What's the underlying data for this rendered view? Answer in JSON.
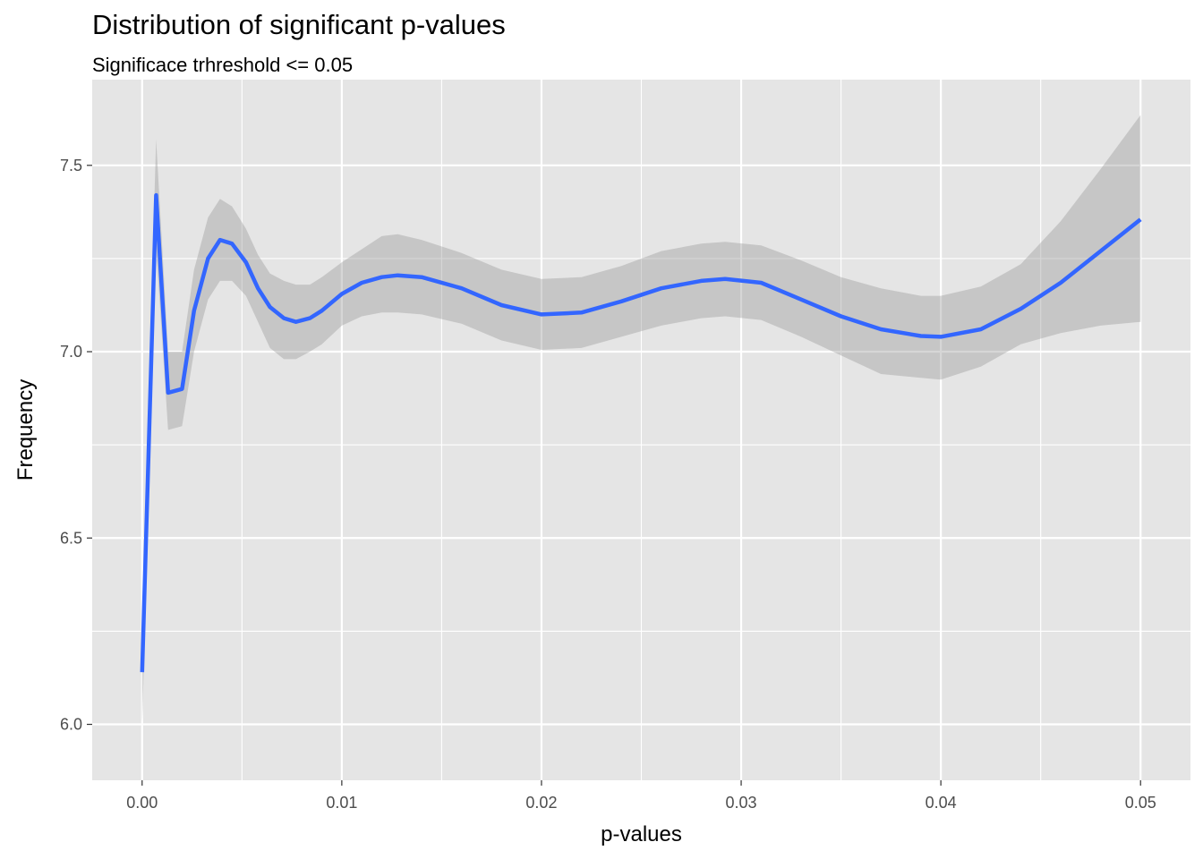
{
  "chart_data": {
    "type": "line",
    "title": "Distribution of significant p-values",
    "subtitle": "Significace trhreshold <= 0.05",
    "xlabel": "p-values",
    "ylabel": "Frequency",
    "xlim": [
      -0.0025,
      0.0525
    ],
    "ylim": [
      5.85,
      7.73
    ],
    "x_ticks": [
      0.0,
      0.01,
      0.02,
      0.03,
      0.04,
      0.05
    ],
    "x_tick_labels": [
      "0.00",
      "0.01",
      "0.02",
      "0.03",
      "0.04",
      "0.05"
    ],
    "y_ticks": [
      6.0,
      6.5,
      7.0,
      7.5
    ],
    "y_tick_labels": [
      "6.0",
      "6.5",
      "7.0",
      "7.5"
    ],
    "grid": true,
    "legend": "none",
    "colors": {
      "panel_background": "#e5e5e5",
      "grid": "#ffffff",
      "line": "#3366ff",
      "ribbon": "#bdbdbd",
      "tick_label": "#4d4d4d"
    },
    "series": [
      {
        "x": [
          0.0,
          0.0007,
          0.0013,
          0.002,
          0.0026,
          0.0033,
          0.0039,
          0.0045,
          0.0052,
          0.0058,
          0.0064,
          0.0071,
          0.0077,
          0.0084,
          0.009,
          0.01,
          0.011,
          0.012,
          0.0128,
          0.014,
          0.016,
          0.018,
          0.02,
          0.022,
          0.024,
          0.026,
          0.028,
          0.0292,
          0.031,
          0.033,
          0.035,
          0.037,
          0.039,
          0.04,
          0.042,
          0.044,
          0.046,
          0.048,
          0.05
        ],
        "y": [
          6.14,
          7.42,
          6.89,
          6.9,
          7.11,
          7.25,
          7.3,
          7.29,
          7.24,
          7.17,
          7.12,
          7.09,
          7.08,
          7.09,
          7.11,
          7.155,
          7.185,
          7.2,
          7.205,
          7.2,
          7.17,
          7.125,
          7.1,
          7.105,
          7.135,
          7.17,
          7.19,
          7.195,
          7.185,
          7.14,
          7.095,
          7.06,
          7.042,
          7.04,
          7.06,
          7.115,
          7.185,
          7.27,
          7.355
        ],
        "lower": [
          6.0,
          7.28,
          6.79,
          6.8,
          7.0,
          7.14,
          7.19,
          7.19,
          7.15,
          7.08,
          7.01,
          6.98,
          6.98,
          7.0,
          7.02,
          7.07,
          7.095,
          7.105,
          7.105,
          7.1,
          7.075,
          7.03,
          7.005,
          7.01,
          7.04,
          7.07,
          7.09,
          7.095,
          7.085,
          7.04,
          6.99,
          6.94,
          6.93,
          6.925,
          6.96,
          7.02,
          7.05,
          7.07,
          7.08
        ],
        "upper": [
          6.28,
          7.57,
          7.0,
          7.0,
          7.22,
          7.36,
          7.41,
          7.39,
          7.33,
          7.26,
          7.21,
          7.19,
          7.18,
          7.18,
          7.2,
          7.24,
          7.275,
          7.31,
          7.315,
          7.3,
          7.265,
          7.22,
          7.195,
          7.2,
          7.23,
          7.27,
          7.29,
          7.295,
          7.285,
          7.245,
          7.2,
          7.17,
          7.15,
          7.15,
          7.175,
          7.235,
          7.35,
          7.49,
          7.635
        ]
      }
    ]
  }
}
